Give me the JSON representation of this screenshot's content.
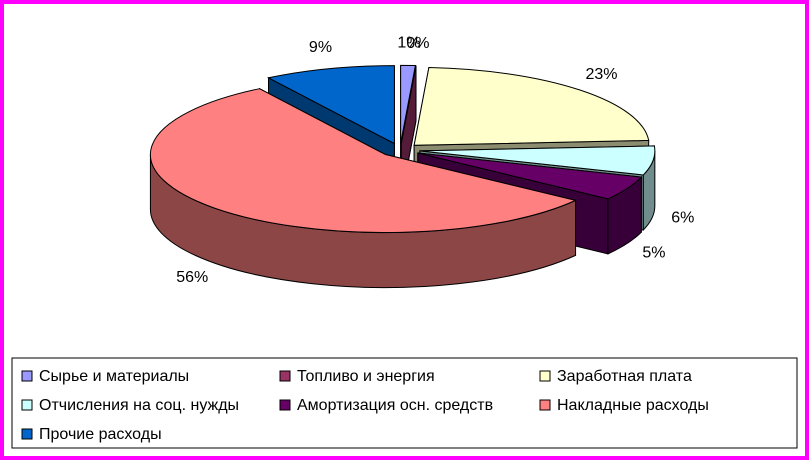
{
  "chart_data": {
    "type": "pie3d",
    "categories": [
      "Сырье и материалы",
      "Топливо и энергия",
      "Заработная плата",
      "Отчисления на соц. нужды",
      "Амортизация осн. средств",
      "Накладные расходы",
      "Прочие расходы"
    ],
    "values": [
      1,
      0,
      23,
      6,
      5,
      56,
      9
    ],
    "value_labels": [
      "1%",
      "0%",
      "23%",
      "6%",
      "5%",
      "56%",
      "9%"
    ],
    "colors": [
      "#9999ff",
      "#993366",
      "#ffffcc",
      "#ccffff",
      "#660066",
      "#ff8080",
      "#0066cc"
    ],
    "legend": "bottom"
  }
}
